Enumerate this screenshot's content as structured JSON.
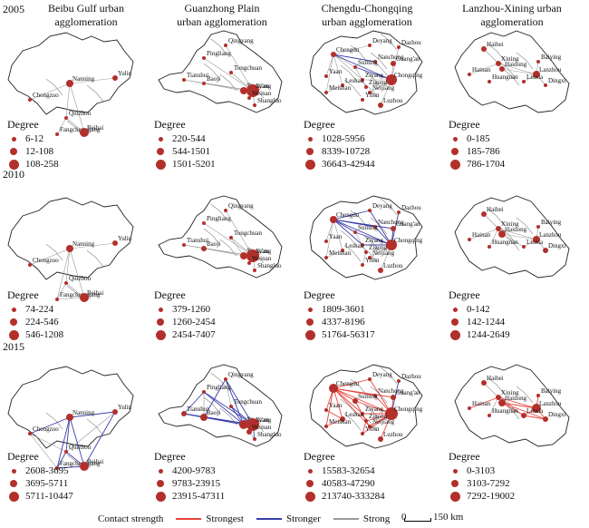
{
  "columns": [
    "Beibu Gulf urban\nagglomeration",
    "Guanzhong Plain\nurban agglomeration",
    "Chengdu-Chongqing\nurban agglomeration",
    "Lanzhou-Xining urban\nagglomeration"
  ],
  "years": [
    "2005",
    "2010",
    "2015"
  ],
  "degree_title": "Degree",
  "legends": [
    [
      [
        "6-12",
        "12-108",
        "108-258"
      ],
      [
        "220-544",
        "544-1501",
        "1501-5201"
      ],
      [
        "1028-5956",
        "8339-10728",
        "36643-42944"
      ],
      [
        "0-185",
        "185-786",
        "786-1704"
      ]
    ],
    [
      [
        "74-224",
        "224-546",
        "546-1208"
      ],
      [
        "379-1260",
        "1260-2454",
        "2454-7407"
      ],
      [
        "1809-3601",
        "4337-8196",
        "51764-56317"
      ],
      [
        "0-142",
        "142-1244",
        "1244-2649"
      ]
    ],
    [
      [
        "2608-3695",
        "3695-5711",
        "5711-10447"
      ],
      [
        "4200-9783",
        "9783-23915",
        "23915-47311"
      ],
      [
        "15583-32654",
        "40583-47290",
        "213740-333284"
      ],
      [
        "0-3103",
        "3103-7292",
        "7292-19002"
      ]
    ]
  ],
  "cities": [
    [
      "Nanning",
      "Chongzuo",
      "Yulin",
      "Qinzhou",
      "Fangchenggang",
      "Beihai"
    ],
    [
      "Qingyang",
      "Pingliang",
      "Tongchuan",
      "Tianshui",
      "Baoji",
      "Xianyang",
      "Xi'an",
      "Weinan",
      "Shangluo"
    ],
    [
      "Deyang",
      "Dazhou",
      "Chengdu",
      "Nanchong",
      "Suining",
      "Guang'an",
      "Yaan",
      "Ziyang",
      "Chongqing",
      "Leshan",
      "Meishan",
      "Neijiang",
      "Zigong",
      "Yibin",
      "Luzhou"
    ],
    [
      "Haibei",
      "Xining",
      "Haidong",
      "Baiying",
      "Lanzhou",
      "Hainan",
      "Huangnan",
      "Linxia",
      "Dingxi"
    ]
  ],
  "contact_legend": {
    "title": "Contact strength",
    "items": [
      {
        "label": "Strongest",
        "color": "#e8453c"
      },
      {
        "label": "Stronger",
        "color": "#3a3fa8"
      },
      {
        "label": "Strong",
        "color": "#9a9a9a"
      }
    ]
  },
  "scale": {
    "zero": "0",
    "label": "150 km"
  },
  "colors": {
    "node": "#b2302b",
    "outline": "#222222"
  }
}
